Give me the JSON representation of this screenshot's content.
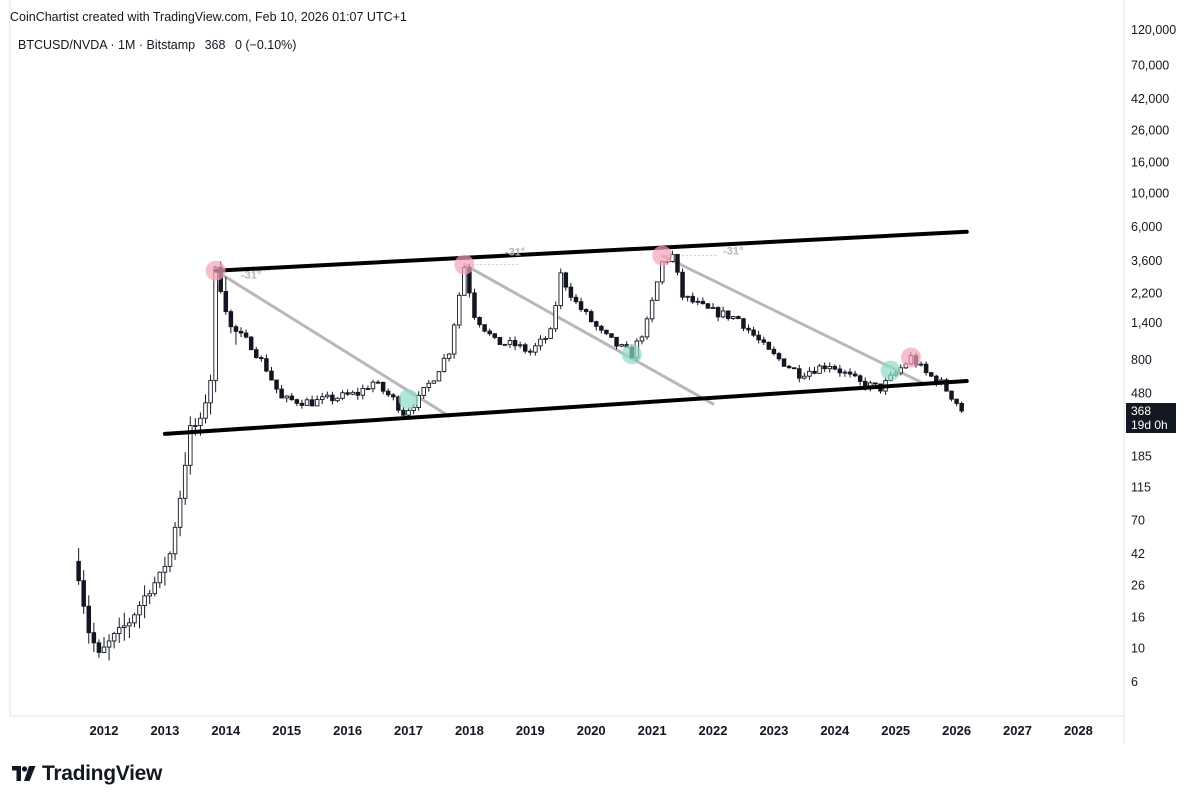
{
  "header": {
    "credit": "CoinChartist created with TradingView.com, Feb 10, 2026 01:07 UTC+1",
    "symbol": "BTCUSD/NVDA · 1M · Bitstamp",
    "last": "368",
    "change": "0 (−0.10%)"
  },
  "brand": {
    "name": "TradingView",
    "icon": "tradingview-logo-icon"
  },
  "price_label": {
    "value": "368",
    "countdown": "19d 0h",
    "color": "#131722"
  },
  "colors": {
    "up_fill": "#ffffff",
    "down_fill": "#131722",
    "channel": "#000000",
    "trend": "#b8b8b8",
    "top_marker": "#f4a3b8",
    "touch_marker": "#8fdcc8"
  },
  "chart_data": {
    "type": "candlestick",
    "y_scale": "log",
    "ylim": [
      4,
      150000
    ],
    "xlim": [
      "2011-06",
      "2028-12"
    ],
    "y_ticks": [
      120000,
      70000,
      42000,
      26000,
      16000,
      10000,
      6000,
      3600,
      2200,
      1400,
      800,
      480,
      185,
      115,
      70,
      42,
      26,
      16,
      10,
      6
    ],
    "y_tick_labels": [
      "120,000",
      "70,000",
      "42,000",
      "26,000",
      "16,000",
      "10,000",
      "6,000",
      "3,600",
      "2,200",
      "1,400",
      "800",
      "480",
      "185",
      "115",
      "70",
      "42",
      "26",
      "16",
      "10",
      "6"
    ],
    "x_ticks": [
      2012,
      2013,
      2014,
      2015,
      2016,
      2017,
      2018,
      2019,
      2020,
      2021,
      2022,
      2023,
      2024,
      2025,
      2026,
      2027,
      2028
    ],
    "x_tick_labels": [
      "2012",
      "2013",
      "2014",
      "2015",
      "2016",
      "2017",
      "2018",
      "2019",
      "2020",
      "2021",
      "2022",
      "2023",
      "2024",
      "2025",
      "2026",
      "2027",
      "2028"
    ],
    "anchors": [
      [
        "2011-08",
        30
      ],
      [
        "2011-10",
        13
      ],
      [
        "2011-12",
        9
      ],
      [
        "2012-03",
        12
      ],
      [
        "2012-06",
        15
      ],
      [
        "2012-09",
        22
      ],
      [
        "2012-12",
        30
      ],
      [
        "2013-02",
        42
      ],
      [
        "2013-04",
        100
      ],
      [
        "2013-06",
        280
      ],
      [
        "2013-08",
        310
      ],
      [
        "2013-10",
        600
      ],
      [
        "2013-11",
        3100
      ],
      [
        "2013-12",
        2400
      ],
      [
        "2014-02",
        1300
      ],
      [
        "2014-06",
        1000
      ],
      [
        "2014-09",
        700
      ],
      [
        "2014-12",
        440
      ],
      [
        "2015-06",
        420
      ],
      [
        "2015-12",
        460
      ],
      [
        "2016-03",
        480
      ],
      [
        "2016-06",
        570
      ],
      [
        "2016-10",
        440
      ],
      [
        "2016-12",
        360
      ],
      [
        "2017-03",
        440
      ],
      [
        "2017-06",
        620
      ],
      [
        "2017-09",
        920
      ],
      [
        "2017-12",
        3300
      ],
      [
        "2018-02",
        1600
      ],
      [
        "2018-06",
        1050
      ],
      [
        "2018-10",
        1000
      ],
      [
        "2019-01",
        900
      ],
      [
        "2019-05",
        1200
      ],
      [
        "2019-07",
        2900
      ],
      [
        "2019-10",
        1900
      ],
      [
        "2020-03",
        1200
      ],
      [
        "2020-06",
        1000
      ],
      [
        "2020-09",
        870
      ],
      [
        "2020-12",
        1400
      ],
      [
        "2021-03",
        3500
      ],
      [
        "2021-05",
        3900
      ],
      [
        "2021-07",
        2100
      ],
      [
        "2021-12",
        1700
      ],
      [
        "2022-06",
        1500
      ],
      [
        "2022-12",
        900
      ],
      [
        "2023-06",
        650
      ],
      [
        "2023-12",
        750
      ],
      [
        "2024-06",
        560
      ],
      [
        "2024-10",
        520
      ],
      [
        "2025-01",
        650
      ],
      [
        "2025-04",
        830
      ],
      [
        "2025-07",
        650
      ],
      [
        "2025-10",
        560
      ],
      [
        "2026-01",
        420
      ],
      [
        "2026-02",
        368
      ]
    ],
    "channel_upper": [
      [
        "2013-11",
        3100
      ],
      [
        "2026-03",
        5600
      ]
    ],
    "channel_lower": [
      [
        "2013-01",
        260
      ],
      [
        "2026-03",
        580
      ]
    ],
    "trendlines": [
      {
        "from": [
          "2013-11",
          3100
        ],
        "to": [
          "2017-09",
          340
        ]
      },
      {
        "from": [
          "2017-12",
          3400
        ],
        "to": [
          "2022-01",
          410
        ]
      },
      {
        "from": [
          "2021-03",
          3900
        ],
        "to": [
          "2025-06",
          570
        ]
      }
    ],
    "top_markers": [
      [
        "2013-11",
        3100
      ],
      [
        "2017-12",
        3400
      ],
      [
        "2021-03",
        3900
      ],
      [
        "2025-04",
        830
      ]
    ],
    "touch_markers": [
      [
        "2017-01",
        440
      ],
      [
        "2020-09",
        870
      ],
      [
        "2024-12",
        680
      ]
    ],
    "angle_labels": [
      {
        "at": [
          "2014-06",
          2750
        ],
        "text": "-31°"
      },
      {
        "at": [
          "2018-10",
          3900
        ],
        "text": "-31°"
      },
      {
        "at": [
          "2022-05",
          3950
        ],
        "text": "-31°"
      }
    ]
  }
}
